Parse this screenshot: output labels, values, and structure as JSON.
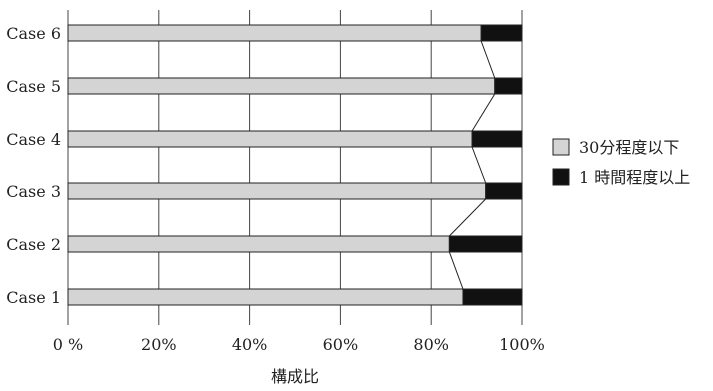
{
  "chart_data": {
    "type": "bar",
    "stacked": true,
    "orientation": "horizontal",
    "categories": [
      "Case 1",
      "Case 2",
      "Case 3",
      "Case 4",
      "Case 5",
      "Case 6"
    ],
    "series": [
      {
        "name": "30分程度以下",
        "color": "#d4d4d4",
        "values": [
          87,
          84,
          92,
          89,
          94,
          91
        ]
      },
      {
        "name": "1 時間程度以上",
        "color": "#111111",
        "values": [
          13,
          16,
          8,
          11,
          6,
          9
        ]
      }
    ],
    "connector_lines": true,
    "xlabel": "構成比",
    "xlim": [
      0,
      100
    ],
    "xticks": [
      0,
      20,
      40,
      60,
      80,
      100
    ],
    "xtick_labels": [
      "0 %",
      "20%",
      "40%",
      "60%",
      "80%",
      "100%"
    ],
    "grid": "vertical",
    "legend_position": "right"
  }
}
